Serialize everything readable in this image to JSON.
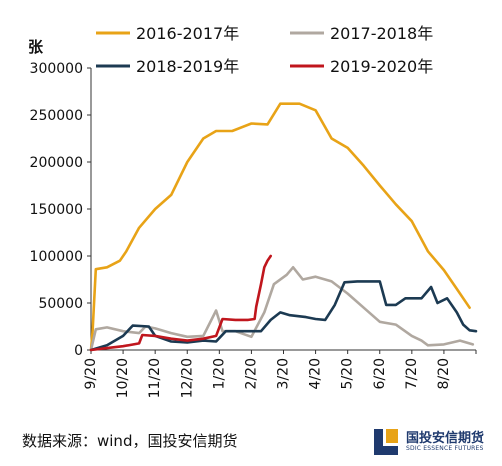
{
  "unit_label": "张",
  "source_text": "数据来源：wind，国投安信期货",
  "logo": {
    "name_cn": "国投安信期货",
    "name_en": "SDIC ESSENCE FUTURES"
  },
  "chart_data": {
    "type": "line",
    "title": "",
    "ylabel": "张",
    "xlabel": "",
    "ylim": [
      0,
      300000
    ],
    "y_ticks": [
      0,
      50000,
      100000,
      150000,
      200000,
      250000,
      300000
    ],
    "x_tick_labels": [
      "9/20",
      "10/20",
      "11/20",
      "12/20",
      "1/20",
      "2/20",
      "3/20",
      "4/20",
      "5/20",
      "6/20",
      "7/20",
      "8/20"
    ],
    "grid": false,
    "legend_position": "top",
    "series": [
      {
        "name": "2016-2017年",
        "color": "#E8A317",
        "points": [
          [
            0,
            0
          ],
          [
            0.05,
            20000
          ],
          [
            0.15,
            86000
          ],
          [
            0.5,
            88000
          ],
          [
            0.9,
            95000
          ],
          [
            1.1,
            105000
          ],
          [
            1.5,
            130000
          ],
          [
            2.0,
            150000
          ],
          [
            2.5,
            165000
          ],
          [
            3.0,
            200000
          ],
          [
            3.5,
            225000
          ],
          [
            3.9,
            233000
          ],
          [
            4.4,
            233000
          ],
          [
            5.0,
            241000
          ],
          [
            5.5,
            240000
          ],
          [
            5.9,
            262000
          ],
          [
            6.2,
            262000
          ],
          [
            6.5,
            262000
          ],
          [
            7.0,
            255000
          ],
          [
            7.5,
            225000
          ],
          [
            8.0,
            215000
          ],
          [
            8.5,
            196000
          ],
          [
            9.0,
            175000
          ],
          [
            9.5,
            155000
          ],
          [
            10.0,
            137000
          ],
          [
            10.5,
            105000
          ],
          [
            11.0,
            85000
          ],
          [
            11.4,
            65000
          ],
          [
            11.8,
            45000
          ]
        ]
      },
      {
        "name": "2017-2018年",
        "color": "#B0A8A0",
        "points": [
          [
            0,
            0
          ],
          [
            0.15,
            22000
          ],
          [
            0.5,
            24000
          ],
          [
            1.0,
            20000
          ],
          [
            1.5,
            18000
          ],
          [
            1.7,
            25000
          ],
          [
            2.0,
            23000
          ],
          [
            2.5,
            18000
          ],
          [
            3.0,
            14000
          ],
          [
            3.5,
            15000
          ],
          [
            3.9,
            42000
          ],
          [
            4.1,
            20000
          ],
          [
            4.5,
            20000
          ],
          [
            5.0,
            14000
          ],
          [
            5.4,
            40000
          ],
          [
            5.7,
            70000
          ],
          [
            6.1,
            80000
          ],
          [
            6.3,
            88000
          ],
          [
            6.6,
            75000
          ],
          [
            7.0,
            78000
          ],
          [
            7.5,
            73000
          ],
          [
            8.0,
            60000
          ],
          [
            8.5,
            45000
          ],
          [
            9.0,
            30000
          ],
          [
            9.5,
            27000
          ],
          [
            10.0,
            15000
          ],
          [
            10.3,
            10000
          ],
          [
            10.5,
            5000
          ],
          [
            11.0,
            6000
          ],
          [
            11.5,
            10000
          ],
          [
            11.9,
            6000
          ]
        ]
      },
      {
        "name": "2018-2019年",
        "color": "#1C3A52",
        "points": [
          [
            0,
            0
          ],
          [
            0.5,
            5000
          ],
          [
            1.0,
            15000
          ],
          [
            1.3,
            26000
          ],
          [
            1.8,
            25000
          ],
          [
            2.0,
            15000
          ],
          [
            2.5,
            9000
          ],
          [
            3.0,
            8000
          ],
          [
            3.5,
            10000
          ],
          [
            3.9,
            9000
          ],
          [
            4.2,
            20000
          ],
          [
            4.8,
            20000
          ],
          [
            5.3,
            20000
          ],
          [
            5.6,
            32000
          ],
          [
            5.9,
            40000
          ],
          [
            6.2,
            37000
          ],
          [
            6.7,
            35000
          ],
          [
            7.0,
            33000
          ],
          [
            7.3,
            32000
          ],
          [
            7.6,
            48000
          ],
          [
            7.9,
            72000
          ],
          [
            8.3,
            73000
          ],
          [
            8.8,
            73000
          ],
          [
            9.0,
            73000
          ],
          [
            9.2,
            48000
          ],
          [
            9.5,
            48000
          ],
          [
            9.8,
            55000
          ],
          [
            10.3,
            55000
          ],
          [
            10.6,
            67000
          ],
          [
            10.8,
            50000
          ],
          [
            11.1,
            55000
          ],
          [
            11.4,
            40000
          ],
          [
            11.6,
            27000
          ],
          [
            11.8,
            21000
          ],
          [
            12.0,
            20000
          ]
        ]
      },
      {
        "name": "2019-2020年",
        "color": "#C0161D",
        "points": [
          [
            0,
            0
          ],
          [
            0.5,
            2000
          ],
          [
            1.0,
            4000
          ],
          [
            1.5,
            7000
          ],
          [
            1.6,
            16000
          ],
          [
            2.0,
            15000
          ],
          [
            2.5,
            12000
          ],
          [
            3.0,
            10000
          ],
          [
            3.5,
            12000
          ],
          [
            3.9,
            15000
          ],
          [
            4.1,
            33000
          ],
          [
            4.5,
            32000
          ],
          [
            4.9,
            32000
          ],
          [
            5.1,
            33000
          ],
          [
            5.15,
            46000
          ],
          [
            5.3,
            70000
          ],
          [
            5.4,
            88000
          ],
          [
            5.5,
            95000
          ],
          [
            5.6,
            100000
          ]
        ]
      }
    ]
  }
}
